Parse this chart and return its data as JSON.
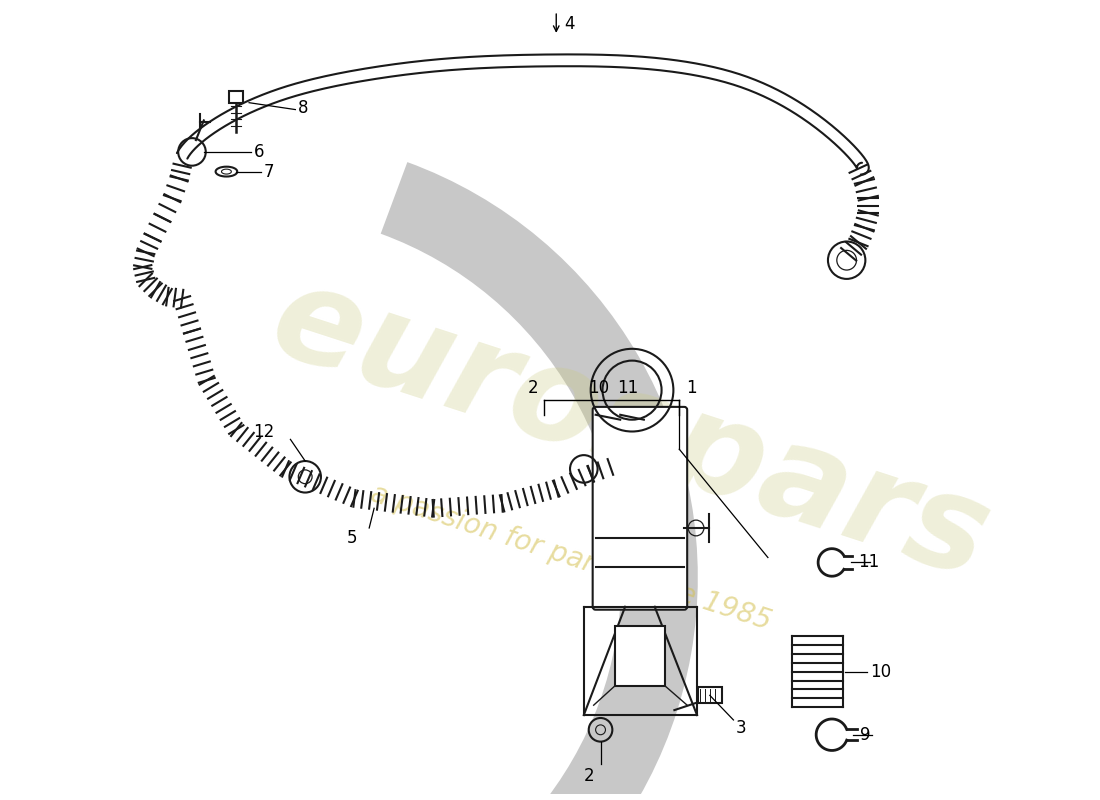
{
  "bg_color": "#ffffff",
  "line_color": "#1a1a1a",
  "wm_color1": "#c8c87a",
  "wm_color2": "#d4c050",
  "wm_arc_color": "#c8c8c8",
  "figsize": [
    11.0,
    8.0
  ],
  "dpi": 100
}
